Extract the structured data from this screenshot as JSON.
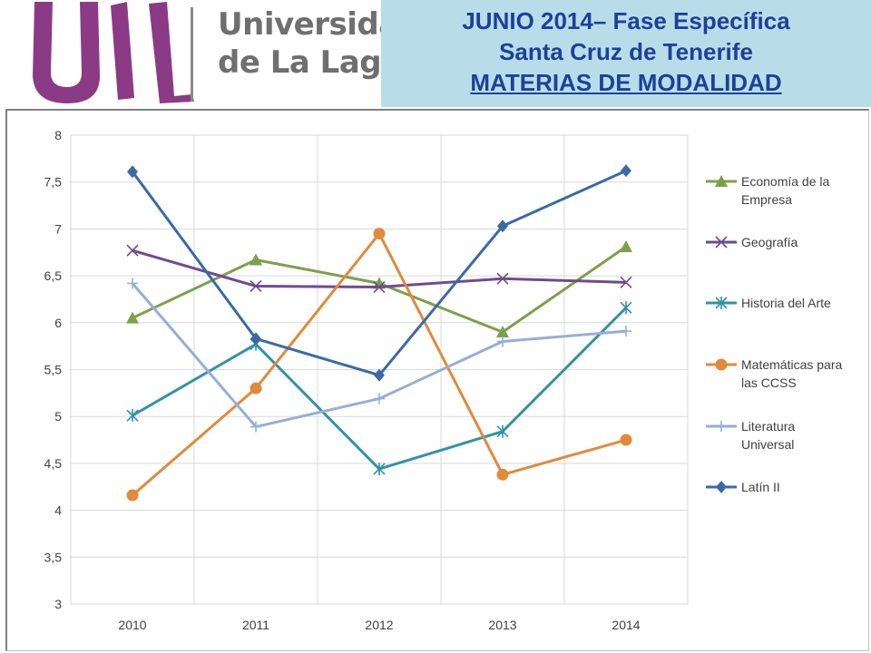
{
  "header": {
    "logo_text": "ULL",
    "university_line1": "Universidad",
    "university_line2": "de La Laguna",
    "title_line1": "JUNIO  2014– Fase Específica",
    "title_line2": "Santa Cruz de Tenerife",
    "title_line3": "MATERIAS DE MODALIDAD"
  },
  "colors": {
    "logo": "#8b3a86",
    "header_bg": "#b7dde8",
    "header_text": "#1f3f99"
  },
  "chart_data": {
    "type": "line",
    "title": "",
    "xlabel": "",
    "ylabel": "",
    "categories": [
      "2010",
      "2011",
      "2012",
      "2013",
      "2014"
    ],
    "ylim": [
      3,
      8
    ],
    "yticks": [
      "3",
      "3,5",
      "4",
      "4,5",
      "5",
      "5,5",
      "6",
      "6,5",
      "7",
      "7,5",
      "8"
    ],
    "grid": true,
    "legend_position": "right",
    "series": [
      {
        "name": "Economía de la Empresa",
        "legend_lines": [
          "Economía de la",
          "Empresa"
        ],
        "marker": "triangle",
        "color": "#7ea04a",
        "values": [
          6.05,
          6.67,
          6.42,
          5.9,
          6.81
        ]
      },
      {
        "name": "Geografía",
        "legend_lines": [
          "Geografía"
        ],
        "marker": "x",
        "color": "#704b8f",
        "values": [
          6.77,
          6.39,
          6.38,
          6.47,
          6.43
        ]
      },
      {
        "name": "Historia del Arte",
        "legend_lines": [
          "Historia del Arte"
        ],
        "marker": "star",
        "color": "#3093a8",
        "values": [
          5.01,
          5.77,
          4.44,
          4.84,
          6.16
        ]
      },
      {
        "name": "Matemáticas para las CCSS",
        "legend_lines": [
          "Matemáticas para",
          "las CCSS"
        ],
        "marker": "circle",
        "color": "#e08a3c",
        "values": [
          4.16,
          5.3,
          6.95,
          4.38,
          4.75
        ]
      },
      {
        "name": "Literatura Universal",
        "legend_lines": [
          "Literatura",
          "Universal"
        ],
        "marker": "plus",
        "color": "#95aed8",
        "values": [
          6.42,
          4.89,
          5.19,
          5.8,
          5.91
        ]
      },
      {
        "name": "Latín II",
        "legend_lines": [
          "Latín II"
        ],
        "marker": "diamond",
        "color": "#3a6aa5",
        "values": [
          7.61,
          5.83,
          5.44,
          7.03,
          7.62
        ]
      }
    ]
  }
}
